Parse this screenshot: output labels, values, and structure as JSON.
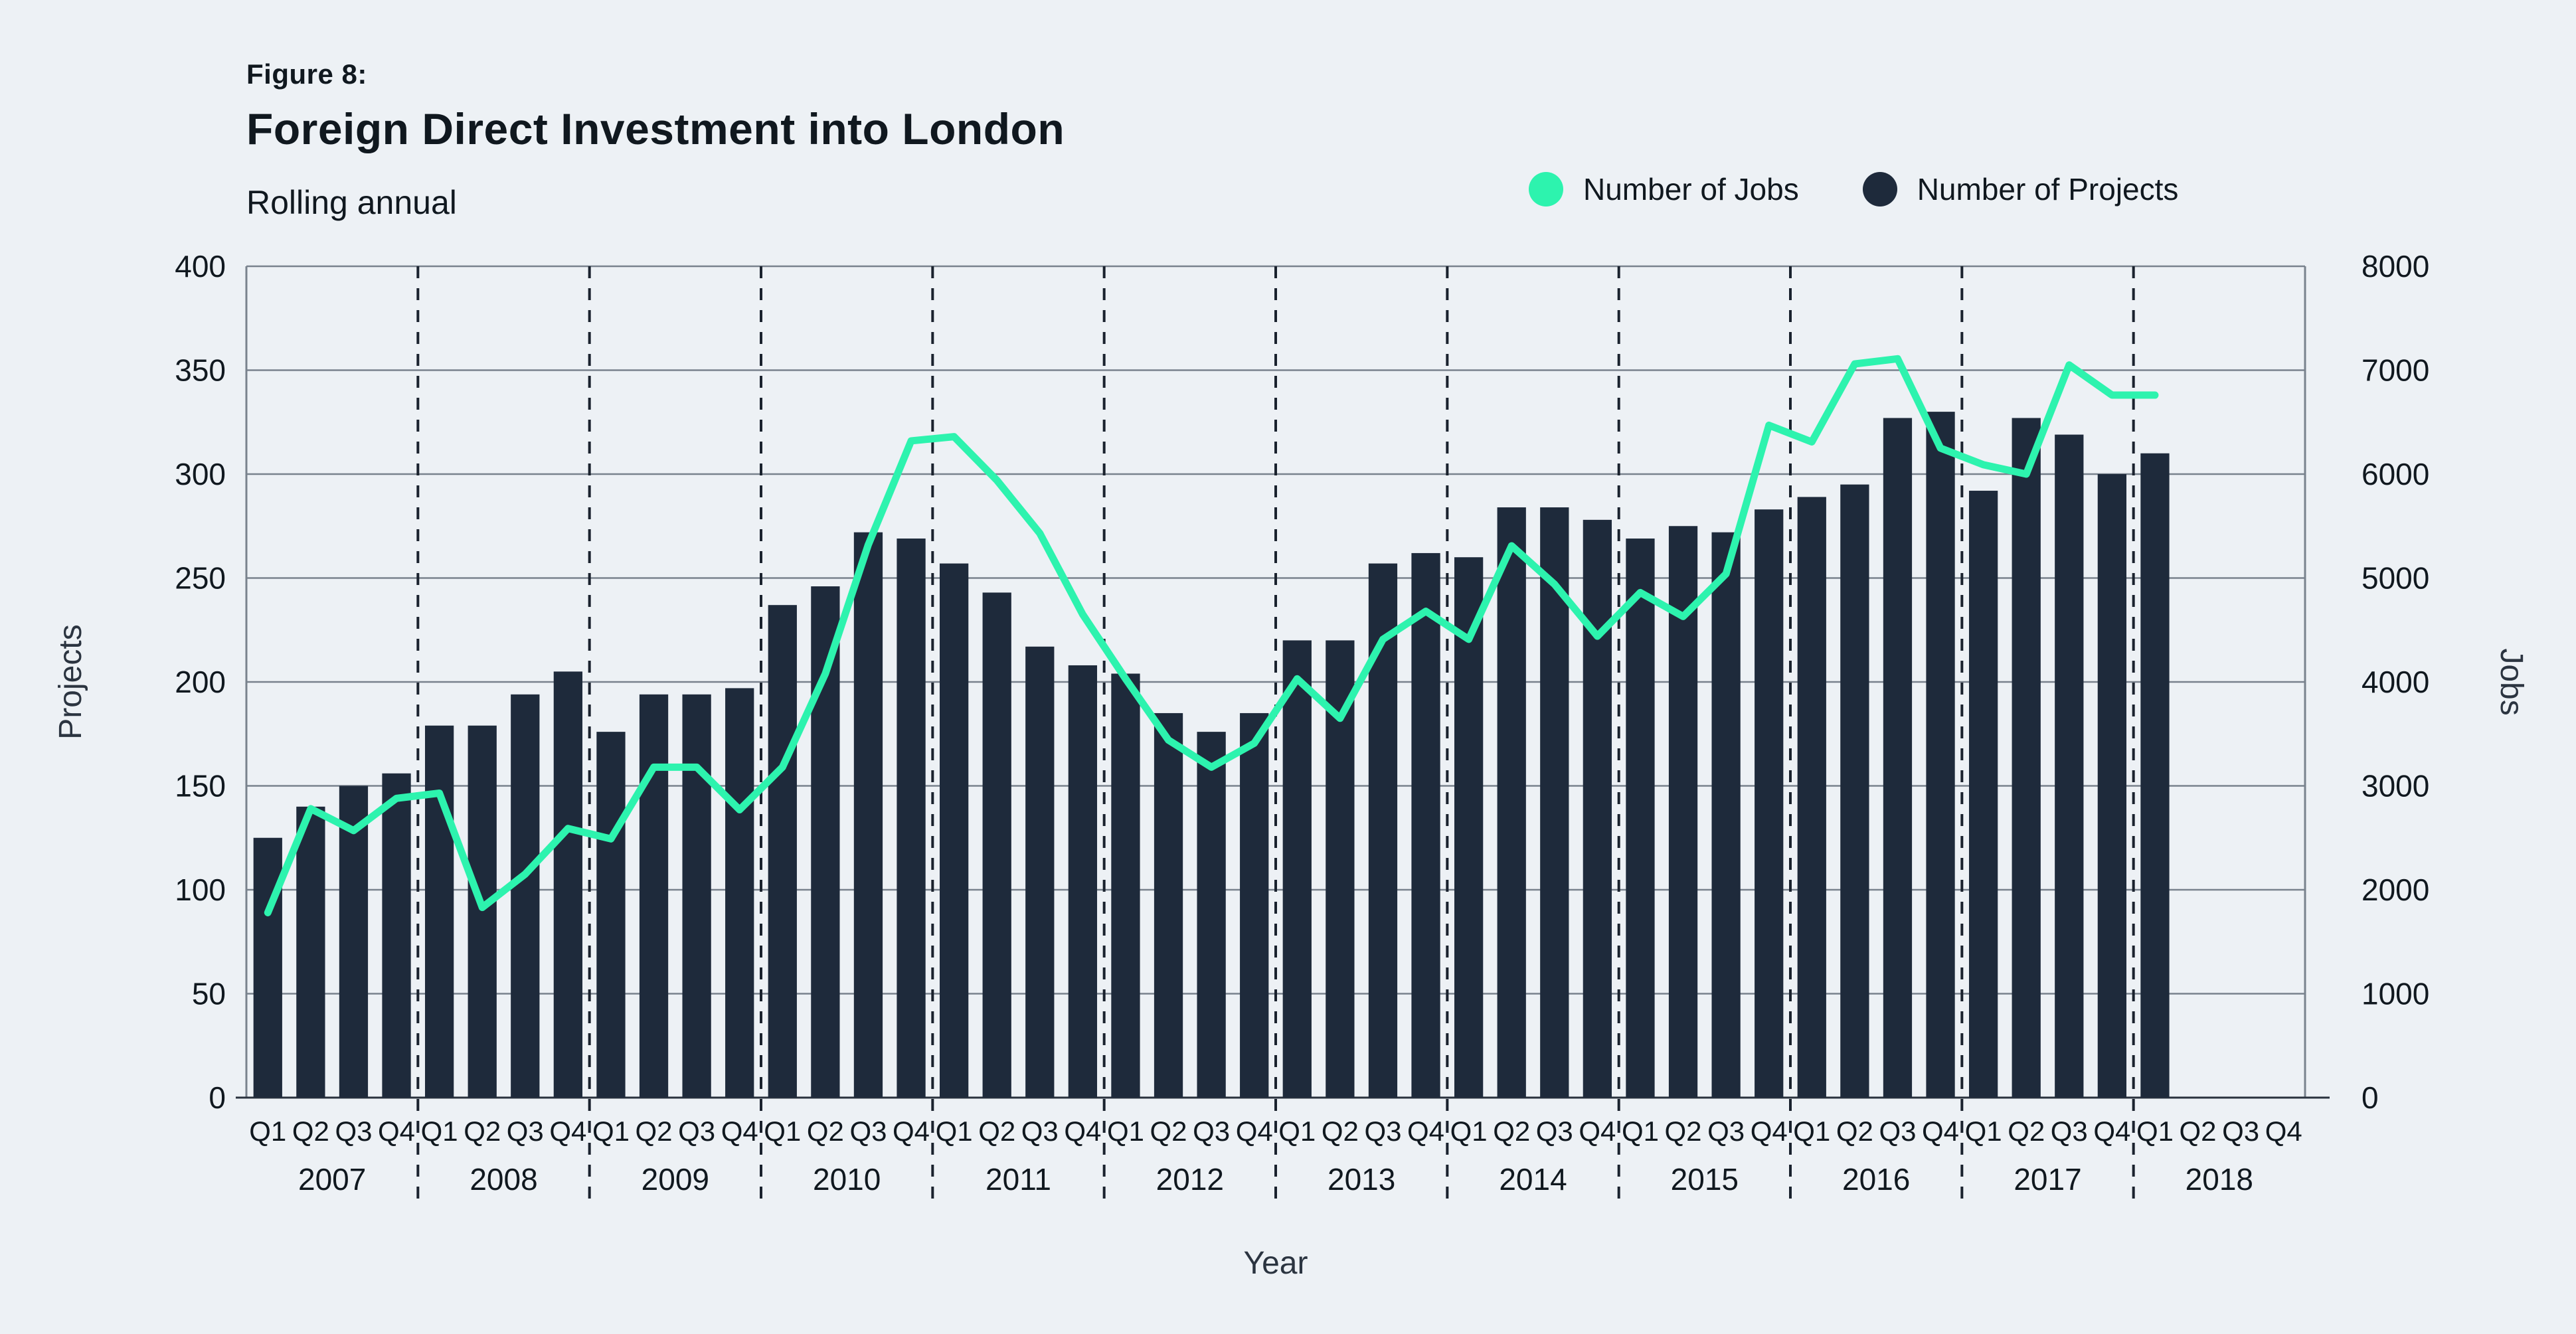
{
  "header": {
    "figure_label": "Figure 8:",
    "title": "Foreign Direct Investment into London",
    "subtitle": "Rolling annual"
  },
  "legend": {
    "jobs": {
      "label": "Number of Jobs",
      "color": "#2df3ae"
    },
    "projects": {
      "label": "Number of Projects",
      "color": "#1e2a3b"
    }
  },
  "chart_data": {
    "type": "bar+line",
    "title": "Foreign Direct Investment into London",
    "subtitle": "Rolling annual",
    "years": [
      "2007",
      "2008",
      "2009",
      "2010",
      "2011",
      "2012",
      "2013",
      "2014",
      "2015",
      "2016",
      "2017",
      "2018"
    ],
    "quarters": [
      "Q1",
      "Q2",
      "Q3",
      "Q4"
    ],
    "xlabel": "Year",
    "left_axis": {
      "label": "Projects",
      "min": 0,
      "max": 400,
      "step": 50
    },
    "right_axis": {
      "label": "Jobs",
      "min": 0,
      "max": 8000,
      "step": 1000
    },
    "grid": true,
    "legend_position": "top-right",
    "series": [
      {
        "name": "Number of Projects",
        "type": "bar",
        "axis": "left",
        "color": "#1e2a3b",
        "values": [
          125,
          140,
          150,
          156,
          179,
          179,
          194,
          205,
          176,
          194,
          194,
          197,
          237,
          246,
          272,
          269,
          257,
          243,
          217,
          208,
          204,
          185,
          176,
          185,
          220,
          220,
          257,
          262,
          260,
          284,
          284,
          278,
          269,
          275,
          272,
          283,
          289,
          295,
          327,
          330,
          292,
          327,
          319,
          300,
          310
        ]
      },
      {
        "name": "Number of Jobs",
        "type": "line",
        "axis": "right",
        "color": "#2df3ae",
        "values": [
          1780,
          2780,
          2570,
          2880,
          2930,
          1830,
          2150,
          2590,
          2490,
          3180,
          3180,
          2770,
          3180,
          4080,
          5320,
          6320,
          6360,
          5940,
          5430,
          4650,
          4030,
          3440,
          3180,
          3410,
          4030,
          3650,
          4410,
          4680,
          4410,
          5310,
          4940,
          4440,
          4860,
          4630,
          5040,
          6470,
          6310,
          7060,
          7110,
          6250,
          6090,
          6000,
          7050,
          6760,
          6760
        ]
      }
    ],
    "colors": {
      "background": "#edf1f5",
      "bar": "#1e2a3b",
      "line": "#2df3ae",
      "grid": "#79828d",
      "axis_line": "#29313d",
      "year_divider": "#1a222e",
      "text": "#10181f",
      "axis_title_text": "#2b3440"
    }
  }
}
